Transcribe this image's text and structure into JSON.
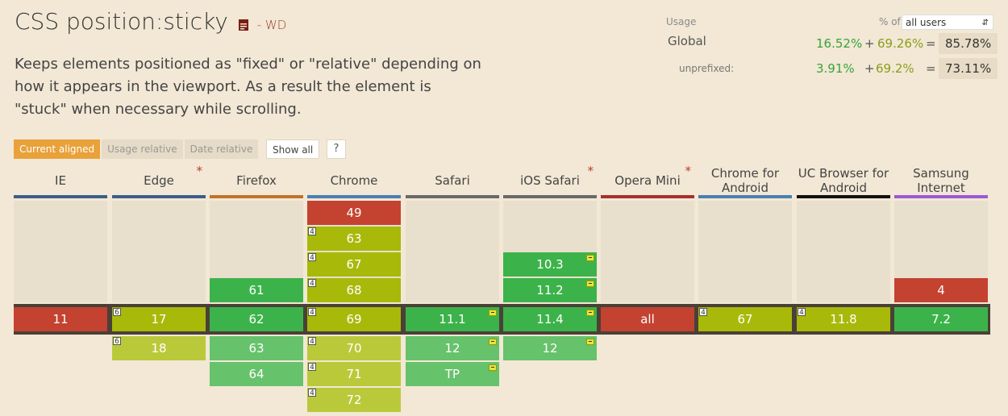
{
  "title": "CSS position:sticky",
  "status": "- WD",
  "description": "Keeps elements positioned as \"fixed\" or \"relative\" depending on how it appears in the viewport. As a result the element is \"stuck\" when necessary while scrolling.",
  "usage": {
    "label": "Usage",
    "pct_of": "% of",
    "select_value": "all users",
    "global_label": "Global",
    "global_supported": "16.52%",
    "global_partial": "69.26%",
    "global_total": "85.78%",
    "unprefixed_label": "unprefixed:",
    "unprefixed_supported": "3.91%",
    "unprefixed_partial": "69.2%",
    "unprefixed_total": "73.11%",
    "plus": "+",
    "equals": "="
  },
  "tabs": [
    "Current aligned",
    "Usage relative",
    "Date relative"
  ],
  "show_all": "Show all",
  "help": "?",
  "colors": {
    "supported": "#3cb34a",
    "partial": "#a8b90a",
    "unsupported": "#c44230",
    "supported_light": "#66c26b",
    "partial_light": "#bac93a"
  },
  "browsers": [
    {
      "name": "IE",
      "star": false,
      "bar": "#3b5e8c",
      "rows": [
        null,
        null,
        null,
        null,
        {
          "v": "11",
          "s": "n"
        },
        null,
        null,
        null
      ]
    },
    {
      "name": "Edge",
      "star": true,
      "bar": "#3b5e8c",
      "rows": [
        null,
        null,
        null,
        null,
        {
          "v": "17",
          "s": "p",
          "note": "6"
        },
        {
          "v": "18",
          "s": "pl",
          "note": "6"
        },
        null,
        null
      ]
    },
    {
      "name": "Firefox",
      "star": false,
      "bar": "#c0732a",
      "rows": [
        null,
        null,
        null,
        {
          "v": "61",
          "s": "y"
        },
        {
          "v": "62",
          "s": "y"
        },
        {
          "v": "63",
          "s": "yl"
        },
        {
          "v": "64",
          "s": "yl"
        },
        null
      ]
    },
    {
      "name": "Chrome",
      "star": false,
      "bar": "#4a7fb5",
      "rows": [
        {
          "v": "49",
          "s": "n"
        },
        {
          "v": "63",
          "s": "p",
          "note": "4"
        },
        {
          "v": "67",
          "s": "p",
          "note": "4"
        },
        {
          "v": "68",
          "s": "p",
          "note": "4"
        },
        {
          "v": "69",
          "s": "p",
          "note": "4"
        },
        {
          "v": "70",
          "s": "pl",
          "note": "4"
        },
        {
          "v": "71",
          "s": "pl",
          "note": "4"
        },
        {
          "v": "72",
          "s": "pl",
          "note": "4"
        }
      ]
    },
    {
      "name": "Safari",
      "star": false,
      "bar": "#6a6a6a",
      "rows": [
        null,
        null,
        null,
        null,
        {
          "v": "11.1",
          "s": "y",
          "flag": true
        },
        {
          "v": "12",
          "s": "yl",
          "flag": true
        },
        {
          "v": "TP",
          "s": "yl",
          "flag": true
        },
        null
      ]
    },
    {
      "name": "iOS Safari",
      "star": true,
      "bar": "#6a6a6a",
      "rows": [
        null,
        null,
        {
          "v": "10.3",
          "s": "y",
          "flag": true
        },
        {
          "v": "11.2",
          "s": "y",
          "flag": true
        },
        {
          "v": "11.4",
          "s": "y",
          "flag": true
        },
        {
          "v": "12",
          "s": "yl",
          "flag": true
        },
        null,
        null
      ]
    },
    {
      "name": "Opera Mini",
      "star": true,
      "bar": "#a5312f",
      "rows": [
        null,
        null,
        null,
        null,
        {
          "v": "all",
          "s": "n"
        },
        null,
        null,
        null
      ]
    },
    {
      "name": "Chrome for Android",
      "star": false,
      "bar": "#4a7fb5",
      "rows": [
        null,
        null,
        null,
        null,
        {
          "v": "67",
          "s": "p",
          "note": "4"
        },
        null,
        null,
        null
      ]
    },
    {
      "name": "UC Browser for Android",
      "star": false,
      "bar": "#111111",
      "rows": [
        null,
        null,
        null,
        null,
        {
          "v": "11.8",
          "s": "p",
          "note": "4"
        },
        null,
        null,
        null
      ]
    },
    {
      "name": "Samsung Internet",
      "star": false,
      "bar": "#9b59d6",
      "rows": [
        null,
        null,
        null,
        {
          "v": "4",
          "s": "n"
        },
        {
          "v": "7.2",
          "s": "y"
        },
        null,
        null,
        null
      ]
    }
  ]
}
